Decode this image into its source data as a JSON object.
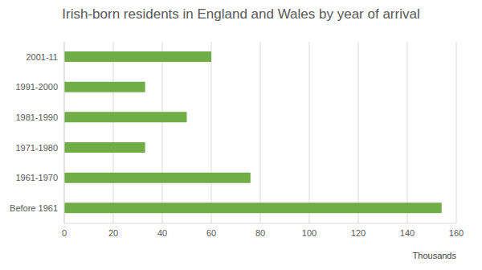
{
  "chart_data": {
    "type": "bar",
    "title": "Irish-born residents in England and Wales by year of arrival",
    "orientation": "horizontal",
    "categories": [
      "2001-11",
      "1991-2000",
      "1981-1990",
      "1971-1980",
      "1961-1970",
      "Before 1961"
    ],
    "values": [
      60,
      33,
      50,
      33,
      76,
      154
    ],
    "color": "#70ad47",
    "xlabel": "Thousands",
    "xlim": [
      0,
      160
    ],
    "xticks": [
      0,
      20,
      40,
      60,
      80,
      100,
      120,
      140,
      160
    ],
    "grid": true
  }
}
